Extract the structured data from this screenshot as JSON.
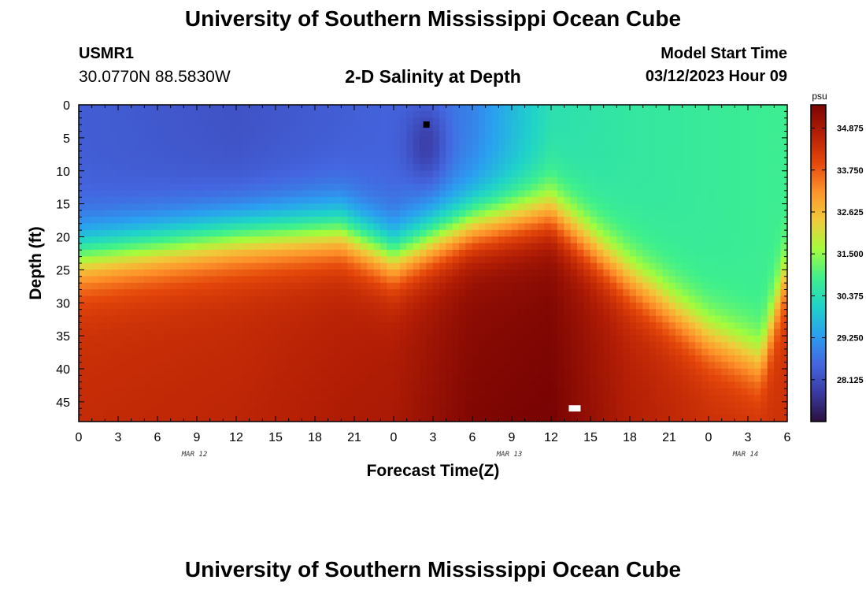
{
  "header": {
    "title": "University of Southern Mississippi Ocean Cube",
    "station_id": "USMR1",
    "station_coords": "30.0770N  88.5830W",
    "plot_title": "2-D Salinity at Depth",
    "model_start_label": "Model Start Time",
    "model_start_value": "03/12/2023 Hour 09"
  },
  "footer": {
    "title": "University of Southern Mississippi Ocean Cube"
  },
  "chart_data": {
    "type": "heatmap",
    "title": "2-D Salinity at Depth",
    "xlabel": "Forecast Time(Z)",
    "ylabel": "Depth (ft)",
    "x_tick_labels": [
      "0",
      "3",
      "6",
      "9",
      "12",
      "15",
      "18",
      "21",
      "0",
      "3",
      "6",
      "9",
      "12",
      "15",
      "18",
      "21",
      "0",
      "3",
      "6"
    ],
    "date_labels": [
      "MAR 12",
      "MAR 13",
      "MAR 14"
    ],
    "y_tick_labels": [
      "0",
      "5",
      "10",
      "15",
      "20",
      "25",
      "30",
      "35",
      "40",
      "45"
    ],
    "x_range_hours": [
      0,
      54
    ],
    "y_range_ft": [
      0,
      48
    ],
    "colorbar": {
      "unit": "psu",
      "tick_labels": [
        "34.875",
        "33.750",
        "32.625",
        "31.500",
        "30.375",
        "29.250",
        "28.125"
      ],
      "range": [
        27.0,
        35.5
      ],
      "colors": [
        "#2b0f3e",
        "#3a3aa3",
        "#4466e0",
        "#2aa0f0",
        "#1fd3c9",
        "#3ff08c",
        "#a4fc3c",
        "#f1ca3a",
        "#fe922a",
        "#e4460a",
        "#b51f05",
        "#7a0403"
      ]
    },
    "salinity_model": {
      "surface_psu": [
        [
          0,
          28.4
        ],
        [
          12,
          28.2
        ],
        [
          24,
          28.5
        ],
        [
          30,
          28.9
        ],
        [
          36,
          30.4
        ],
        [
          42,
          30.6
        ],
        [
          48,
          30.7
        ],
        [
          54,
          30.8
        ]
      ],
      "bottom_psu": [
        [
          0,
          34.3
        ],
        [
          12,
          34.4
        ],
        [
          24,
          34.7
        ],
        [
          30,
          35.2
        ],
        [
          36,
          35.3
        ],
        [
          42,
          34.6
        ],
        [
          48,
          34.3
        ],
        [
          54,
          34.2
        ]
      ],
      "halocline_depth_ft": [
        [
          0,
          23
        ],
        [
          12,
          20
        ],
        [
          20,
          19
        ],
        [
          24,
          23
        ],
        [
          30,
          18
        ],
        [
          36,
          16
        ],
        [
          42,
          26
        ],
        [
          48,
          35
        ],
        [
          52,
          39
        ],
        [
          54,
          25
        ]
      ],
      "halocline_thickness_ft": 6,
      "minimum_core": {
        "hour": 26.5,
        "depth_ft": 6,
        "psu": 27.3
      }
    },
    "markers": [
      {
        "hour": 26.5,
        "depth_ft": 3,
        "color": "#000000"
      },
      {
        "hour": 37.8,
        "depth_ft": 46,
        "color": "#ffffff"
      }
    ]
  }
}
